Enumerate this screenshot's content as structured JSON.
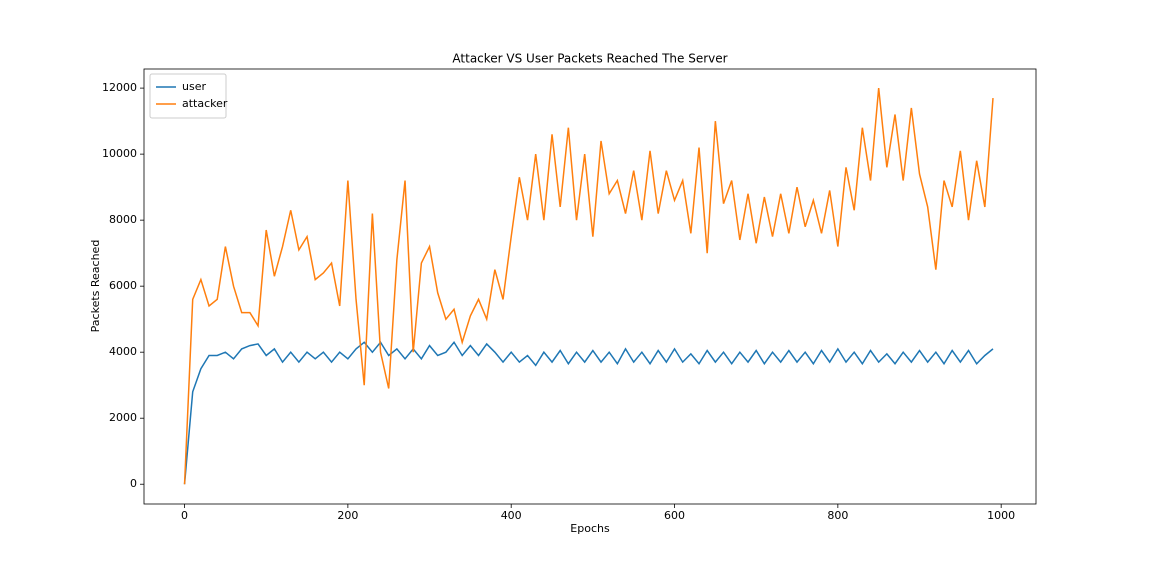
{
  "chart_data": {
    "type": "line",
    "title": "Attacker VS User Packets Reached The Server",
    "x_label": "Epochs",
    "y_label": "Packets Reached",
    "x": [
      0,
      10,
      20,
      30,
      40,
      50,
      60,
      70,
      80,
      90,
      100,
      110,
      120,
      130,
      140,
      150,
      160,
      170,
      180,
      190,
      200,
      210,
      220,
      230,
      240,
      250,
      260,
      270,
      280,
      290,
      300,
      310,
      320,
      330,
      340,
      350,
      360,
      370,
      380,
      390,
      400,
      410,
      420,
      430,
      440,
      450,
      460,
      470,
      480,
      490,
      500,
      510,
      520,
      530,
      540,
      550,
      560,
      570,
      580,
      590,
      600,
      610,
      620,
      630,
      640,
      650,
      660,
      670,
      680,
      690,
      700,
      710,
      720,
      730,
      740,
      750,
      760,
      770,
      780,
      790,
      800,
      810,
      820,
      830,
      840,
      850,
      860,
      870,
      880,
      890,
      900,
      910,
      920,
      930,
      940,
      950,
      960,
      970,
      980,
      990
    ],
    "series": [
      {
        "name": "user",
        "color": "#1f77b4",
        "values": [
          0,
          2800,
          3500,
          3900,
          3900,
          4000,
          3800,
          4100,
          4200,
          4250,
          3900,
          4100,
          3700,
          4000,
          3700,
          4000,
          3800,
          4000,
          3700,
          4000,
          3800,
          4100,
          4300,
          4000,
          4300,
          3900,
          4100,
          3800,
          4100,
          3800,
          4200,
          3900,
          4000,
          4300,
          3900,
          4200,
          3900,
          4250,
          4000,
          3700,
          4000,
          3700,
          3900,
          3600,
          4000,
          3700,
          4050,
          3650,
          4000,
          3700,
          4050,
          3700,
          4000,
          3650,
          4100,
          3700,
          4000,
          3650,
          4050,
          3700,
          4100,
          3700,
          3950,
          3650,
          4050,
          3700,
          4000,
          3650,
          4000,
          3700,
          4050,
          3650,
          4000,
          3700,
          4050,
          3700,
          4000,
          3650,
          4050,
          3700,
          4100,
          3700,
          4000,
          3650,
          4050,
          3700,
          3950,
          3650,
          4000,
          3700,
          4050,
          3700,
          4000,
          3650,
          4050,
          3700,
          4050,
          3650,
          3900,
          4100
        ]
      },
      {
        "name": "attacker",
        "color": "#ff7f0e",
        "values": [
          0,
          5600,
          6200,
          5400,
          5600,
          7200,
          6000,
          5200,
          5200,
          4800,
          7700,
          6300,
          7200,
          8300,
          7100,
          7500,
          6200,
          6400,
          6700,
          5400,
          9200,
          5600,
          3000,
          8200,
          4000,
          2900,
          6800,
          9200,
          4000,
          6700,
          7200,
          5800,
          5000,
          5300,
          4300,
          5100,
          5600,
          5000,
          6500,
          5600,
          7500,
          9300,
          8000,
          10000,
          8000,
          10600,
          8400,
          10800,
          8000,
          10000,
          7500,
          10400,
          8800,
          9200,
          8200,
          9500,
          8000,
          10100,
          8200,
          9500,
          8600,
          9200,
          7600,
          10200,
          7000,
          11000,
          8500,
          9200,
          7400,
          8800,
          7300,
          8700,
          7500,
          8800,
          7600,
          9000,
          7800,
          8600,
          7600,
          8900,
          7200,
          9600,
          8300,
          10800,
          9200,
          12000,
          9600,
          11200,
          9200,
          11400,
          9400,
          8400,
          6500,
          9200,
          8400,
          10100,
          8000,
          9800,
          8400,
          11700
        ]
      }
    ],
    "xlim": [
      -49.65,
      1042.65
    ],
    "ylim": [
      -599,
      12579
    ],
    "xticks": [
      0,
      200,
      400,
      600,
      800,
      1000
    ],
    "yticks": [
      0,
      2000,
      4000,
      6000,
      8000,
      10000,
      12000
    ],
    "legend": "upper left"
  }
}
